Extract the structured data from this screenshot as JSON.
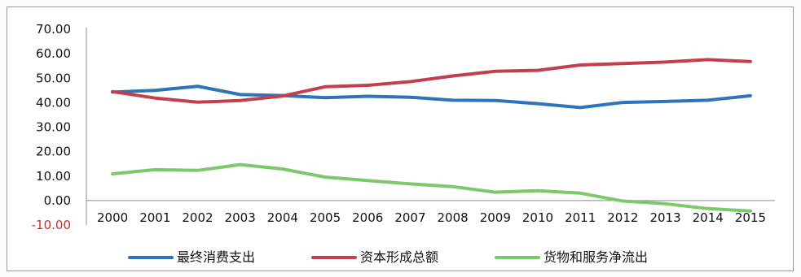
{
  "chart_data": {
    "type": "line",
    "title": "",
    "xlabel": "",
    "ylabel": "",
    "x": [
      "2000",
      "2001",
      "2002",
      "2003",
      "2004",
      "2005",
      "2006",
      "2007",
      "2008",
      "2009",
      "2010",
      "2011",
      "2012",
      "2013",
      "2014",
      "2015"
    ],
    "ylim": [
      -10,
      70
    ],
    "yticks": [
      "70.00",
      "60.00",
      "50.00",
      "40.00",
      "30.00",
      "20.00",
      "10.00",
      "0.00",
      "-10.00"
    ],
    "legend_position": "bottom",
    "grid": false,
    "series": [
      {
        "name": "最终消费支出",
        "color": "#2e74b8",
        "values": [
          44.3,
          45.0,
          46.7,
          43.3,
          42.9,
          42.0,
          42.6,
          42.2,
          41.0,
          40.9,
          39.6,
          38.0,
          40.1,
          40.5,
          41.0,
          42.8
        ]
      },
      {
        "name": "资本形成总额",
        "color": "#c33f4c",
        "values": [
          44.5,
          41.9,
          40.2,
          40.9,
          42.7,
          46.5,
          47.1,
          48.6,
          50.9,
          52.8,
          53.2,
          55.4,
          56.0,
          56.6,
          57.6,
          56.8
        ]
      },
      {
        "name": "货物和服务净流出",
        "color": "#7bc96b",
        "values": [
          10.9,
          12.6,
          12.3,
          14.7,
          12.9,
          9.6,
          8.2,
          6.8,
          5.7,
          3.4,
          4.0,
          3.0,
          -0.2,
          -1.3,
          -3.3,
          -4.3
        ]
      }
    ]
  }
}
